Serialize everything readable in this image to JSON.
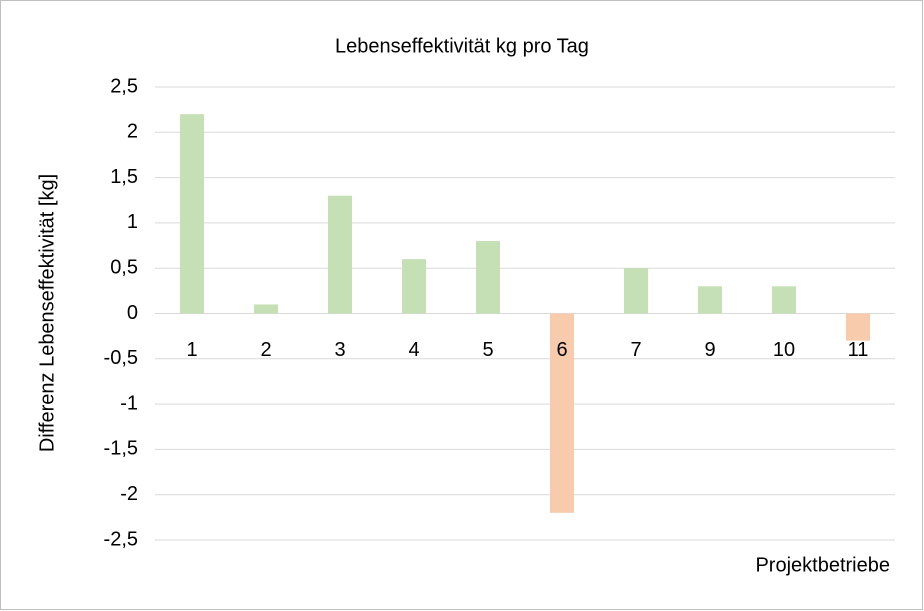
{
  "chart_data": {
    "type": "bar",
    "title": "Lebenseffektivität kg pro Tag",
    "x_label": "Projektbetriebe",
    "y_label": "Differenz Lebenseffektivität [kg]",
    "categories": [
      "1",
      "2",
      "3",
      "4",
      "5",
      "6",
      "7",
      "9",
      "10",
      "11"
    ],
    "values": [
      2.2,
      0.1,
      1.3,
      0.6,
      0.8,
      -2.2,
      0.5,
      0.3,
      0.3,
      -0.3
    ],
    "colors": [
      "#c5e0b4",
      "#c5e0b4",
      "#c5e0b4",
      "#c5e0b4",
      "#c5e0b4",
      "#f8cbad",
      "#c5e0b4",
      "#c5e0b4",
      "#c5e0b4",
      "#f8cbad"
    ],
    "ylim": [
      -2.5,
      2.5
    ],
    "yticks": [
      {
        "value": 2.5,
        "label": "2,5"
      },
      2,
      {
        "value": 1.5,
        "label": "1,5"
      },
      1,
      {
        "value": 0.5,
        "label": "0,5"
      },
      0,
      {
        "value": -0.5,
        "label": "-0,5"
      },
      -1,
      {
        "value": -1.5,
        "label": "-1,5"
      },
      -2,
      {
        "value": -2.5,
        "label": "-2,5"
      }
    ],
    "grid": true
  }
}
